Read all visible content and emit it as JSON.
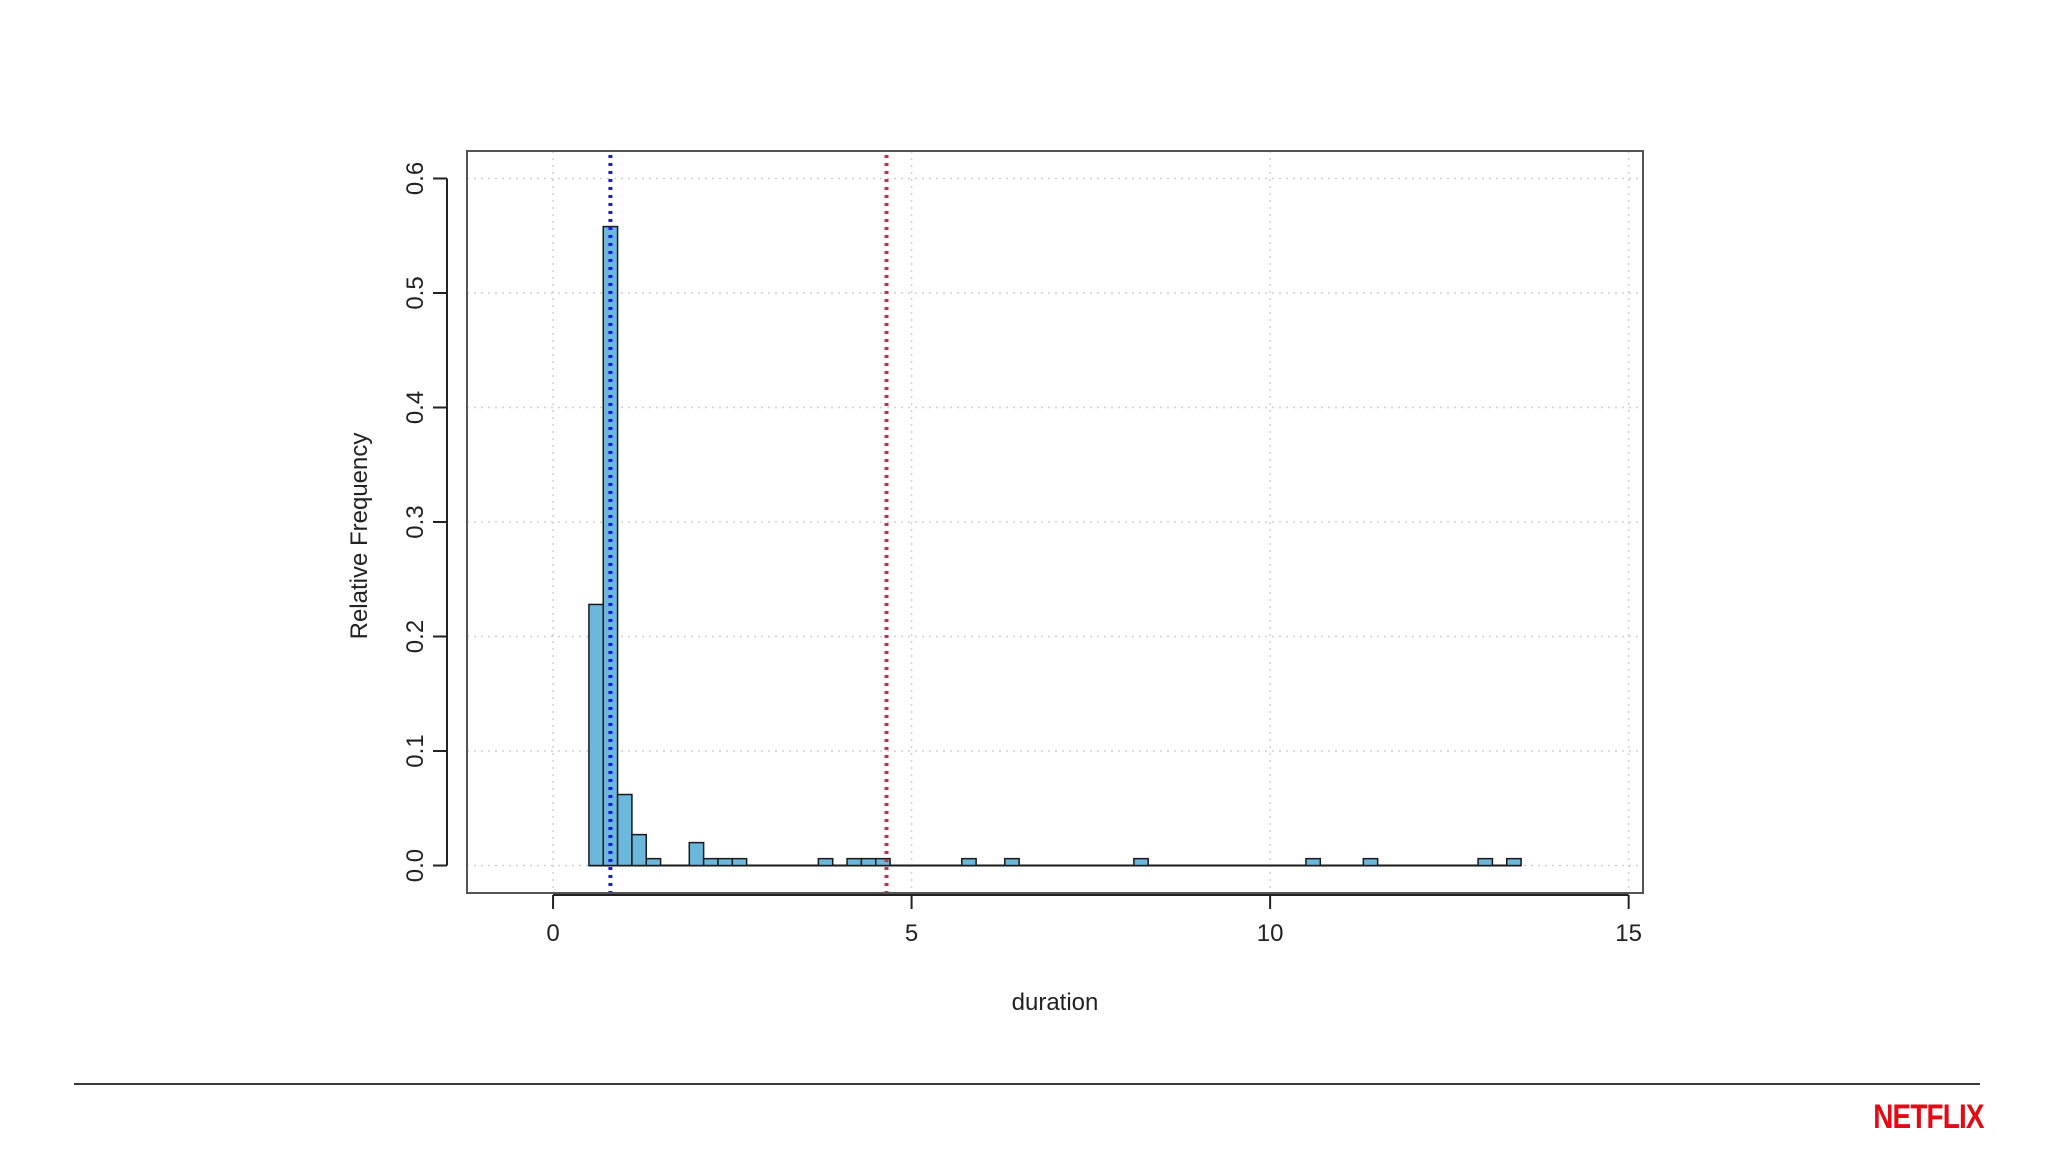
{
  "brand": {
    "logo_text": "NETFLIX",
    "color": "#e50914"
  },
  "chart_data": {
    "type": "bar",
    "title": "",
    "xlabel": "duration",
    "ylabel": "Relative Frequency",
    "xlim": [
      -1.2,
      15.2
    ],
    "ylim": [
      -0.024,
      0.624
    ],
    "xticks": [
      0,
      5,
      10,
      15
    ],
    "yticks": [
      0.0,
      0.1,
      0.2,
      0.3,
      0.4,
      0.5,
      0.6
    ],
    "ytick_labels": [
      "0.0",
      "0.1",
      "0.2",
      "0.3",
      "0.4",
      "0.5",
      "0.6"
    ],
    "xtick_labels": [
      "0",
      "5",
      "10",
      "15"
    ],
    "grid": true,
    "bin_width": 0.2,
    "bins": [
      {
        "x0": 0.5,
        "x1": 0.7,
        "value": 0.228
      },
      {
        "x0": 0.7,
        "x1": 0.9,
        "value": 0.558
      },
      {
        "x0": 0.9,
        "x1": 1.1,
        "value": 0.062
      },
      {
        "x0": 1.1,
        "x1": 1.3,
        "value": 0.027
      },
      {
        "x0": 1.3,
        "x1": 1.5,
        "value": 0.006
      },
      {
        "x0": 1.9,
        "x1": 2.1,
        "value": 0.02
      },
      {
        "x0": 2.1,
        "x1": 2.3,
        "value": 0.006
      },
      {
        "x0": 2.3,
        "x1": 2.5,
        "value": 0.006
      },
      {
        "x0": 2.5,
        "x1": 2.7,
        "value": 0.006
      },
      {
        "x0": 3.7,
        "x1": 3.9,
        "value": 0.006
      },
      {
        "x0": 4.1,
        "x1": 4.3,
        "value": 0.006
      },
      {
        "x0": 4.3,
        "x1": 4.5,
        "value": 0.006
      },
      {
        "x0": 4.5,
        "x1": 4.7,
        "value": 0.006
      },
      {
        "x0": 5.7,
        "x1": 5.9,
        "value": 0.006
      },
      {
        "x0": 6.3,
        "x1": 6.5,
        "value": 0.006
      },
      {
        "x0": 8.1,
        "x1": 8.3,
        "value": 0.006
      },
      {
        "x0": 10.5,
        "x1": 10.7,
        "value": 0.006
      },
      {
        "x0": 11.3,
        "x1": 11.5,
        "value": 0.006
      },
      {
        "x0": 12.9,
        "x1": 13.1,
        "value": 0.006
      },
      {
        "x0": 13.3,
        "x1": 13.5,
        "value": 0.006
      }
    ],
    "baseline": {
      "x0": 0.5,
      "x1": 13.5,
      "value": 0.0
    },
    "vlines": [
      {
        "x": 0.8,
        "color": "#1a1ae6"
      },
      {
        "x": 4.65,
        "color": "#b03a48"
      }
    ],
    "bar_fill": "#6bb8dc",
    "bar_stroke": "#1a1a1a"
  }
}
